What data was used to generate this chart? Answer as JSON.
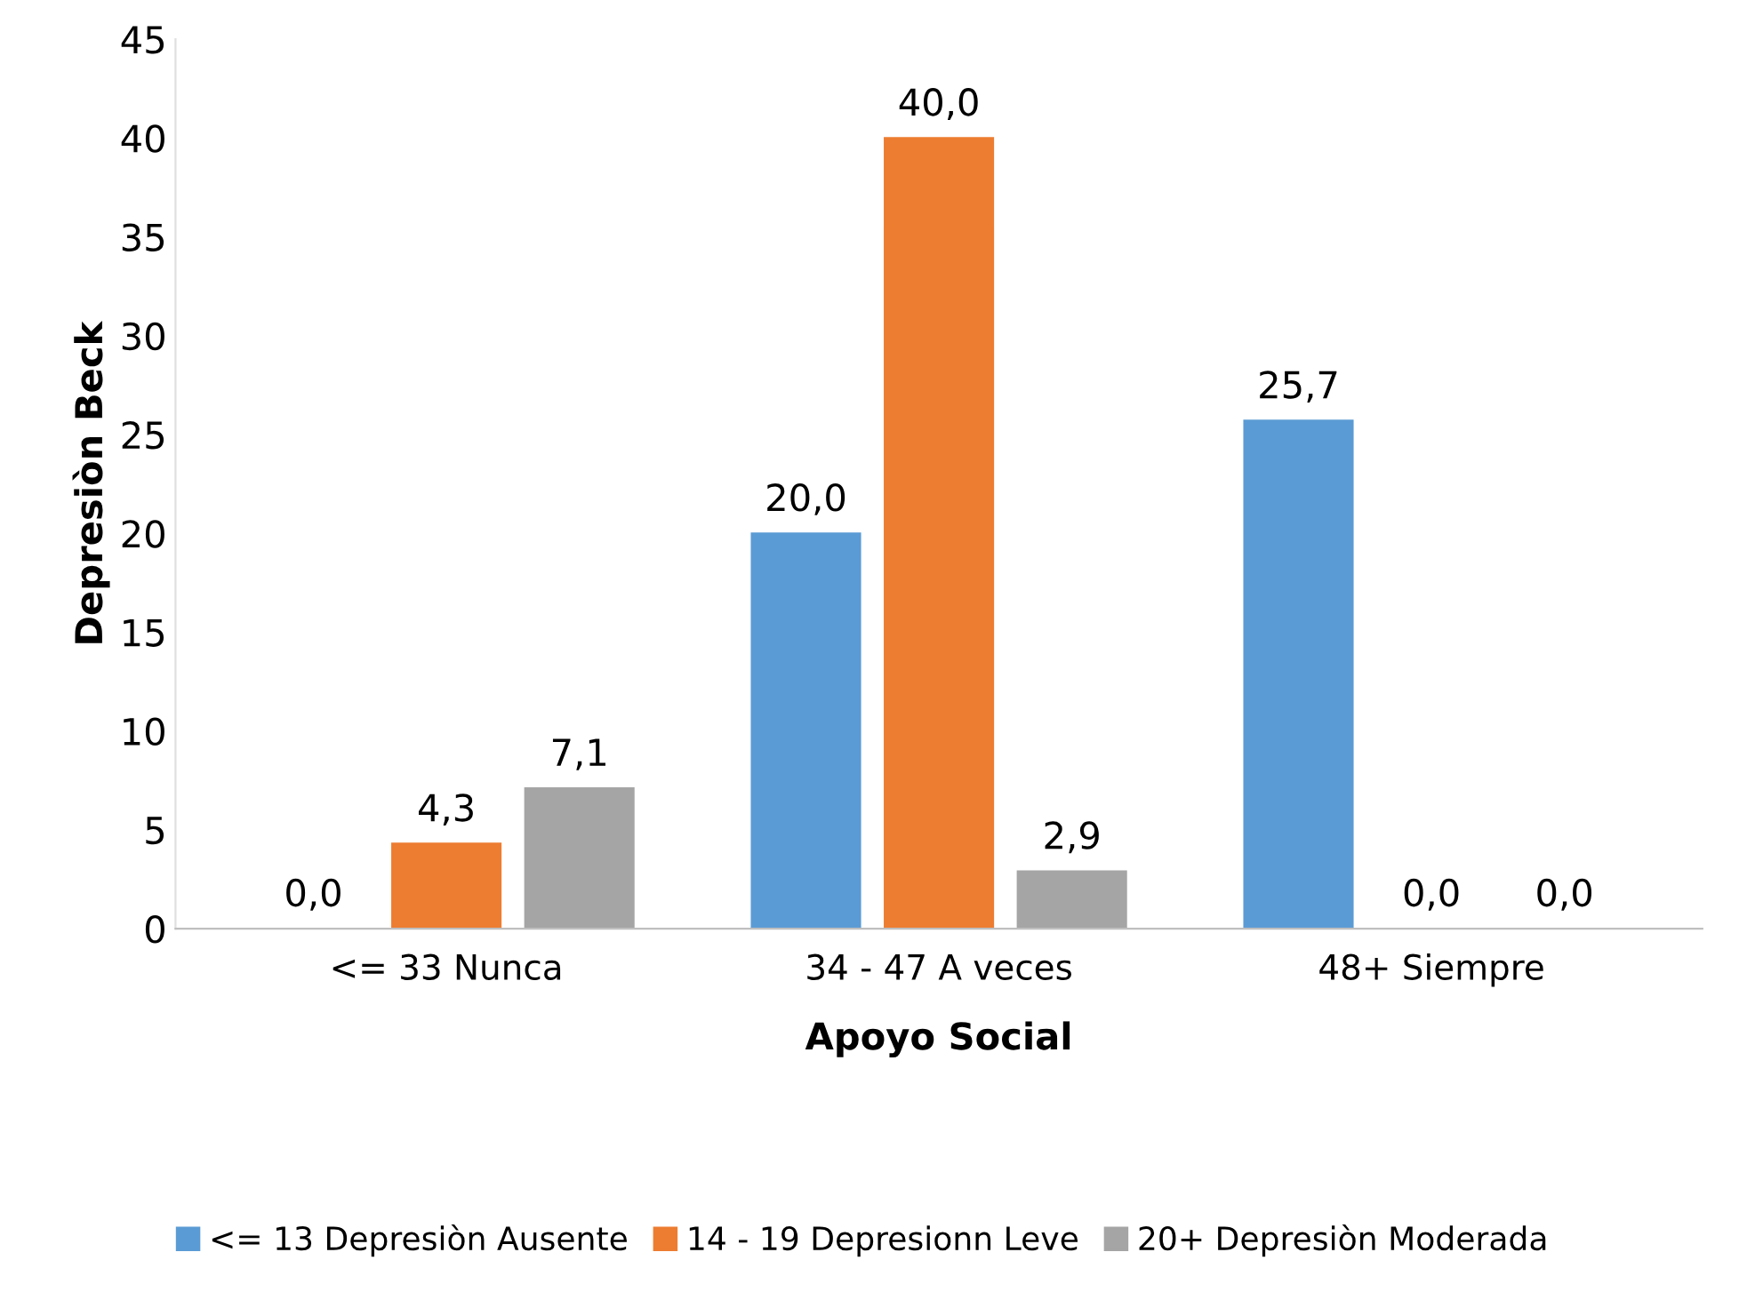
{
  "chart_data": {
    "type": "bar",
    "xlabel": "Apoyo Social",
    "ylabel": "Depresiòn Beck",
    "categories": [
      "<= 33 Nunca",
      "34 - 47 A veces",
      "48+ Siempre"
    ],
    "series": [
      {
        "name": "<= 13 Depresiòn Ausente",
        "color": "#5b9bd5",
        "values": [
          0.0,
          20.0,
          25.7
        ],
        "value_labels": [
          "0,0",
          "20,0",
          "25,7"
        ]
      },
      {
        "name": "14 - 19 Depresionn Leve",
        "color": "#ed7d31",
        "values": [
          4.3,
          40.0,
          0.0
        ],
        "value_labels": [
          "4,3",
          "40,0",
          "0,0"
        ]
      },
      {
        "name": "20+ Depresiòn Moderada",
        "color": "#a5a5a5",
        "values": [
          7.1,
          2.9,
          0.0
        ],
        "value_labels": [
          "7,1",
          "2,9",
          "0,0"
        ]
      }
    ],
    "ylim": [
      0,
      45
    ],
    "yticks": [
      0,
      5,
      10,
      15,
      20,
      25,
      30,
      35,
      40,
      45
    ],
    "grid": false,
    "legend": "bottom"
  }
}
